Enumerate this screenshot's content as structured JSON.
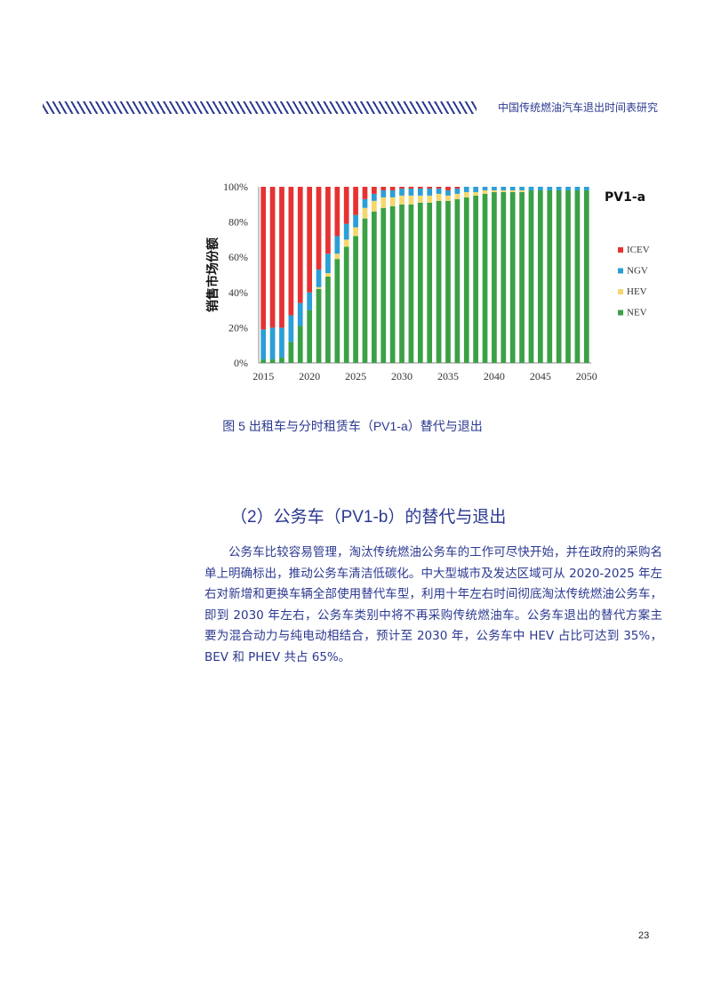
{
  "header": {
    "title": "中国传统燃油汽车退出时间表研究"
  },
  "figure": {
    "caption": "图 5 出租车与分时租赁车（PV1-a）替代与退出"
  },
  "section": {
    "heading": "（2）公务车（PV1-b）的替代与退出",
    "paragraph": "公务车比较容易管理，淘汰传统燃油公务车的工作可尽快开始，并在政府的采购名单上明确标出，推动公务车清洁低碳化。中大型城市及发达区域可从 2020-2025 年左右对新增和更换车辆全部使用替代车型，利用十年左右时间彻底淘汰传统燃油公务车，即到 2030 年左右，公务车类别中将不再采购传统燃油车。公务车退出的替代方案主要为混合动力与纯电动相结合，预计至 2030 年，公务车中 HEV 占比可达到 35%，BEV 和 PHEV 共占 65%。"
  },
  "page_number": "23",
  "chart_data": {
    "type": "bar",
    "stacked": true,
    "title": "PV1-a",
    "ylabel": "销售市场份额",
    "xlabel": "",
    "ylim": [
      0,
      100
    ],
    "y_ticks": [
      "0%",
      "20%",
      "40%",
      "60%",
      "80%",
      "100%"
    ],
    "x_ticks": [
      "2015",
      "2020",
      "2025",
      "2030",
      "2035",
      "2040",
      "2045",
      "2050"
    ],
    "legend_position": "right",
    "grid": false,
    "categories": [
      2015,
      2016,
      2017,
      2018,
      2019,
      2020,
      2021,
      2022,
      2023,
      2024,
      2025,
      2026,
      2027,
      2028,
      2029,
      2030,
      2031,
      2032,
      2033,
      2034,
      2035,
      2036,
      2037,
      2038,
      2039,
      2040,
      2041,
      2042,
      2043,
      2044,
      2045,
      2046,
      2047,
      2048,
      2049,
      2050
    ],
    "series": [
      {
        "name": "NEV",
        "color": "#3aa144",
        "values": [
          2,
          2,
          3,
          12,
          21,
          30,
          42,
          49,
          59,
          66,
          72,
          82,
          86,
          88,
          89,
          90,
          90,
          91,
          91,
          92,
          92,
          93,
          94,
          95,
          96,
          97,
          97,
          97,
          97,
          98,
          98,
          98,
          98,
          98,
          98,
          98
        ]
      },
      {
        "name": "HEV",
        "color": "#f5d76e",
        "values": [
          0,
          0,
          0,
          0,
          0,
          0,
          1,
          2,
          3,
          4,
          5,
          6,
          6,
          6,
          5,
          5,
          5,
          4,
          4,
          4,
          3,
          3,
          3,
          2,
          2,
          1,
          1,
          1,
          1,
          0,
          0,
          0,
          0,
          0,
          0,
          0
        ]
      },
      {
        "name": "NGV",
        "color": "#2b9fd6",
        "values": [
          17,
          18,
          17,
          15,
          13,
          10,
          10,
          11,
          10,
          9,
          7,
          5,
          4,
          4,
          4,
          4,
          4,
          4,
          4,
          3,
          3,
          3,
          3,
          3,
          2,
          2,
          2,
          2,
          2,
          2,
          2,
          2,
          2,
          2,
          2,
          2
        ]
      },
      {
        "name": "ICEV",
        "color": "#e63232",
        "values": [
          81,
          80,
          80,
          73,
          66,
          60,
          47,
          38,
          28,
          21,
          16,
          7,
          4,
          2,
          2,
          1,
          1,
          1,
          1,
          1,
          2,
          1,
          0,
          0,
          0,
          0,
          0,
          0,
          0,
          0,
          0,
          0,
          0,
          0,
          0,
          0
        ]
      }
    ],
    "legend_order": [
      "ICEV",
      "NGV",
      "HEV",
      "NEV"
    ]
  }
}
